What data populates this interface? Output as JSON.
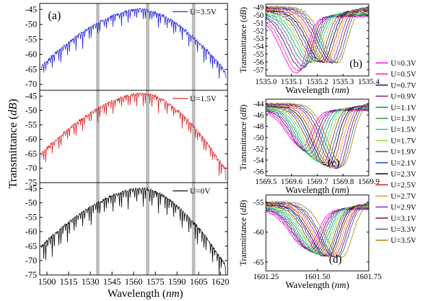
{
  "figure": {
    "ylabel_prefix": "Transmittance (",
    "ylabel_unit": "dB",
    "ylabel_suffix": ")",
    "xlabel_prefix": "Wavelength (",
    "xlabel_unit": "nm",
    "xlabel_suffix": ")"
  },
  "chart_data": [
    {
      "id": "a",
      "type": "line",
      "panel_label": "(a)",
      "xlabel": "Wavelength (nm)",
      "ylabel": "Transmittance (dB)",
      "xlim": [
        1495,
        1625
      ],
      "x_ticks": [
        1500,
        1515,
        1530,
        1545,
        1560,
        1575,
        1590,
        1605,
        1620
      ],
      "highlight_bands_nm": [
        1535.2,
        1569.7,
        1601.5
      ],
      "subplots": [
        {
          "name": "U=3.5V",
          "color": "#1f1fd6",
          "ylim": [
            -72,
            -43
          ],
          "y_ticks": [
            -45,
            -50,
            -55,
            -60,
            -65,
            -70
          ],
          "envelope": {
            "peak_x": 1565,
            "peak_y": -45,
            "edge_left_y": -64,
            "edge_right_y": -66,
            "dip_depth_db": 6
          }
        },
        {
          "name": "U=1.5V",
          "color": "#e02020",
          "ylim": [
            -75,
            -43
          ],
          "y_ticks": [
            -45,
            -50,
            -55,
            -60,
            -65,
            -70,
            -75
          ],
          "envelope": {
            "peak_x": 1567,
            "peak_y": -44,
            "edge_left_y": -65,
            "edge_right_y": -71,
            "dip_depth_db": 6
          }
        },
        {
          "name": "U=0V",
          "color": "#000000",
          "ylim": [
            -75,
            -43
          ],
          "y_ticks": [
            -45,
            -50,
            -55,
            -60,
            -65,
            -70,
            -75
          ],
          "envelope": {
            "peak_x": 1566,
            "peak_y": -45,
            "edge_left_y": -65,
            "edge_right_y": -72,
            "dip_depth_db": 8
          }
        }
      ]
    },
    {
      "id": "b",
      "type": "line",
      "panel_label": "(b)",
      "xlabel": "Wavelength (nm)",
      "ylabel": "Transmittance (dB)",
      "xlim": [
        1535.0,
        1535.4
      ],
      "ylim": [
        -57.8,
        -48.6
      ],
      "x_ticks": [
        1535.0,
        1535.1,
        1535.2,
        1535.3,
        1535.4
      ],
      "x_tick_labels": [
        "1535.0",
        "1535.1",
        "1535.2",
        "1535.3",
        "1535.4"
      ],
      "y_ticks": [
        -49,
        -50,
        -51,
        -52,
        -53,
        -54,
        -55,
        -56,
        -57
      ],
      "dip_centers": [
        1535.12,
        1535.13,
        1535.14,
        1535.15,
        1535.16,
        1535.17,
        1535.18,
        1535.19,
        1535.2,
        1535.21,
        1535.22,
        1535.23,
        1535.24,
        1535.25,
        1535.26,
        1535.27,
        1535.28
      ],
      "dip_minima": [
        -56.8,
        -56.6,
        -56.4,
        -56.2,
        -56.0,
        -55.8,
        -55.8,
        -55.9,
        -56.0,
        -56.1,
        -56.2,
        -56.3,
        -56.4,
        -56.5,
        -56.6,
        -56.7,
        -56.8
      ],
      "baseline": -49.6,
      "dip_width": 0.05
    },
    {
      "id": "c",
      "type": "line",
      "panel_label": "(c)",
      "xlabel": "Wavelength (nm)",
      "ylabel": "Transmittance (dB)",
      "xlim": [
        1569.5,
        1569.9
      ],
      "ylim": [
        -56.8,
        -43.2
      ],
      "x_ticks": [
        1569.5,
        1569.6,
        1569.7,
        1569.8,
        1569.9
      ],
      "x_tick_labels": [
        "1569.5",
        "1569.6",
        "1569.7",
        "1569.8",
        "1569.9"
      ],
      "y_ticks": [
        -44,
        -46,
        -48,
        -50,
        -52,
        -54,
        -56
      ],
      "dip_centers": [
        1569.64,
        1569.65,
        1569.66,
        1569.67,
        1569.68,
        1569.69,
        1569.7,
        1569.71,
        1569.72,
        1569.73,
        1569.74,
        1569.75,
        1569.76,
        1569.77,
        1569.78,
        1569.79,
        1569.8
      ],
      "dip_minima": [
        -51.0,
        -51.5,
        -52.0,
        -52.5,
        -53.0,
        -53.5,
        -54.0,
        -54.3,
        -54.6,
        -54.9,
        -55.2,
        -55.4,
        -55.6,
        -55.8,
        -56.0,
        -55.8,
        -55.6
      ],
      "baseline": -44.6,
      "dip_width": 0.05
    },
    {
      "id": "d",
      "type": "line",
      "panel_label": "(d)",
      "xlabel": "Wavelength (nm)",
      "ylabel": "Transmittance (dB)",
      "xlim": [
        1601.25,
        1601.75
      ],
      "ylim": [
        -66.5,
        -53.8
      ],
      "x_ticks": [
        1601.25,
        1601.5,
        1601.75
      ],
      "x_tick_labels": [
        "1601.25",
        "1601.50",
        "1601.75"
      ],
      "y_ticks": [
        -55,
        -60,
        -65
      ],
      "dip_centers": [
        1601.45,
        1601.46,
        1601.47,
        1601.48,
        1601.49,
        1601.5,
        1601.51,
        1601.52,
        1601.53,
        1601.54,
        1601.55,
        1601.56,
        1601.57,
        1601.58,
        1601.59,
        1601.6,
        1601.62
      ],
      "dip_minima": [
        -62.0,
        -62.3,
        -62.6,
        -62.9,
        -63.2,
        -63.4,
        -63.6,
        -63.8,
        -64.0,
        -64.1,
        -64.2,
        -64.3,
        -64.4,
        -64.5,
        -64.6,
        -64.7,
        -64.8
      ],
      "baseline": -55.6,
      "dip_width": 0.07
    }
  ],
  "legend": {
    "entries": [
      {
        "label": "U=0.3V",
        "color": "#ff00ff"
      },
      {
        "label": "U=0.5V",
        "color": "#ff2d8a"
      },
      {
        "label": "U=0.7V",
        "color": "#1a1a8c"
      },
      {
        "label": "U=0.9V",
        "color": "#8c1a8c"
      },
      {
        "label": "U=1.1V",
        "color": "#1a8c8c"
      },
      {
        "label": "U=1.3V",
        "color": "#2a9d2a"
      },
      {
        "label": "U=1.5V",
        "color": "#19d6d6"
      },
      {
        "label": "U=1.7V",
        "color": "#9bd619"
      },
      {
        "label": "U=1.9V",
        "color": "#8c3a1a"
      },
      {
        "label": "U=2.1V",
        "color": "#2a4fd6"
      },
      {
        "label": "U=2.3V",
        "color": "#000000"
      },
      {
        "label": "U=2.5V",
        "color": "#d62a2a"
      },
      {
        "label": "U=2.7V",
        "color": "#e8a020"
      },
      {
        "label": "U=2.9V",
        "color": "#8a2be2"
      },
      {
        "label": "U=3.1V",
        "color": "#8c1a1a"
      },
      {
        "label": "U=3.3V",
        "color": "#1a6ad6"
      },
      {
        "label": "U=3.5V",
        "color": "#b8860b"
      }
    ]
  }
}
